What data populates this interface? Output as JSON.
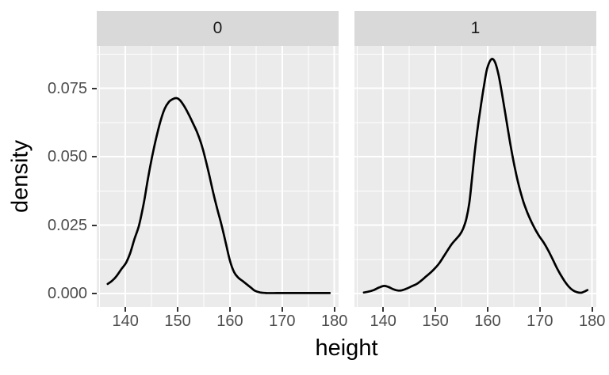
{
  "figure": {
    "x_axis_title": "height",
    "y_axis_title": "density"
  },
  "chart_data": {
    "type": "line",
    "chart_kind": "faceted-kernel-density-plot",
    "title": "",
    "xlabel": "height",
    "ylabel": "density",
    "x_range": [
      134.5,
      180.8
    ],
    "y_range": [
      -0.0049,
      0.0905
    ],
    "x_ticks": [
      140,
      150,
      160,
      170,
      180
    ],
    "x_tick_labels": [
      "140",
      "150",
      "160",
      "170",
      "180"
    ],
    "x_minor_ticks": [
      135,
      145,
      155,
      165,
      175
    ],
    "y_ticks": [
      0,
      0.025,
      0.05,
      0.075
    ],
    "y_tick_labels": [
      "0.000",
      "0.025",
      "0.050",
      "0.075"
    ],
    "y_minor_ticks": [
      0.0125,
      0.0375,
      0.0625,
      0.0875
    ],
    "grid": true,
    "legend": "none",
    "facets": [
      {
        "label": "0",
        "peak": {
          "height": 149.8,
          "density": 0.0714
        },
        "series": [
          [
            136.6,
            0.0035
          ],
          [
            137.4,
            0.0046
          ],
          [
            138.3,
            0.0064
          ],
          [
            139.2,
            0.0089
          ],
          [
            140.1,
            0.0112
          ],
          [
            140.9,
            0.0148
          ],
          [
            141.7,
            0.0198
          ],
          [
            142.6,
            0.025
          ],
          [
            143.5,
            0.033
          ],
          [
            144.3,
            0.042
          ],
          [
            145.1,
            0.05
          ],
          [
            145.9,
            0.057
          ],
          [
            146.7,
            0.063
          ],
          [
            147.5,
            0.0675
          ],
          [
            148.3,
            0.07
          ],
          [
            149.1,
            0.0711
          ],
          [
            149.8,
            0.0714
          ],
          [
            150.5,
            0.0705
          ],
          [
            151.3,
            0.0683
          ],
          [
            152.1,
            0.0655
          ],
          [
            152.9,
            0.0623
          ],
          [
            153.7,
            0.059
          ],
          [
            154.5,
            0.0548
          ],
          [
            155.3,
            0.0492
          ],
          [
            156.1,
            0.0428
          ],
          [
            156.9,
            0.036
          ],
          [
            157.7,
            0.03
          ],
          [
            158.4,
            0.025
          ],
          [
            159.2,
            0.0185
          ],
          [
            160.0,
            0.012
          ],
          [
            160.8,
            0.0078
          ],
          [
            161.6,
            0.0058
          ],
          [
            162.4,
            0.0046
          ],
          [
            163.2,
            0.0034
          ],
          [
            164.0,
            0.0022
          ],
          [
            164.8,
            0.001
          ],
          [
            165.8,
            0.0004
          ],
          [
            167.0,
            0.0002
          ],
          [
            169.0,
            0.0002
          ],
          [
            171.0,
            0.0002
          ],
          [
            173.0,
            0.0002
          ],
          [
            175.0,
            0.0002
          ],
          [
            177.0,
            0.0002
          ],
          [
            179.1,
            0.0002
          ]
        ]
      },
      {
        "label": "1",
        "peak": {
          "height": 160.7,
          "density": 0.0856
        },
        "series": [
          [
            136.3,
            0.0004
          ],
          [
            137.2,
            0.0007
          ],
          [
            138.2,
            0.0013
          ],
          [
            139.2,
            0.0022
          ],
          [
            140.2,
            0.0028
          ],
          [
            141.0,
            0.0024
          ],
          [
            141.9,
            0.0016
          ],
          [
            142.8,
            0.0011
          ],
          [
            143.6,
            0.0012
          ],
          [
            144.5,
            0.0018
          ],
          [
            145.5,
            0.0027
          ],
          [
            146.5,
            0.0036
          ],
          [
            147.4,
            0.0049
          ],
          [
            148.3,
            0.0064
          ],
          [
            149.1,
            0.0077
          ],
          [
            149.9,
            0.0092
          ],
          [
            150.7,
            0.011
          ],
          [
            151.5,
            0.0133
          ],
          [
            152.3,
            0.0157
          ],
          [
            153.1,
            0.018
          ],
          [
            153.9,
            0.0198
          ],
          [
            154.7,
            0.0216
          ],
          [
            155.3,
            0.0237
          ],
          [
            155.9,
            0.0272
          ],
          [
            156.5,
            0.0332
          ],
          [
            157.0,
            0.042
          ],
          [
            157.5,
            0.0512
          ],
          [
            158.0,
            0.0592
          ],
          [
            158.6,
            0.0674
          ],
          [
            159.3,
            0.076
          ],
          [
            159.9,
            0.0822
          ],
          [
            160.7,
            0.0856
          ],
          [
            161.4,
            0.0846
          ],
          [
            162.1,
            0.0798
          ],
          [
            162.7,
            0.0735
          ],
          [
            163.4,
            0.0655
          ],
          [
            164.1,
            0.0573
          ],
          [
            164.8,
            0.0498
          ],
          [
            165.5,
            0.0433
          ],
          [
            166.2,
            0.0378
          ],
          [
            166.9,
            0.0332
          ],
          [
            167.6,
            0.0296
          ],
          [
            168.3,
            0.0265
          ],
          [
            169.1,
            0.0235
          ],
          [
            169.9,
            0.0209
          ],
          [
            170.7,
            0.0187
          ],
          [
            171.5,
            0.0161
          ],
          [
            172.3,
            0.0131
          ],
          [
            173.1,
            0.0099
          ],
          [
            173.9,
            0.0071
          ],
          [
            174.7,
            0.0046
          ],
          [
            175.5,
            0.0026
          ],
          [
            176.3,
            0.0012
          ],
          [
            177.1,
            0.0005
          ],
          [
            177.9,
            0.0003
          ],
          [
            178.5,
            0.0007
          ],
          [
            179.1,
            0.0013
          ]
        ]
      }
    ],
    "colors": {
      "panel_bg": "#EBEBEB",
      "strip_bg": "#D9D9D9",
      "grid": "#FFFFFF",
      "curve": "#000000",
      "axis_text": "#4D4D4D",
      "tick_mark": "#333333",
      "title_text": "#000000",
      "strip_text": "#1A1A1A"
    }
  }
}
